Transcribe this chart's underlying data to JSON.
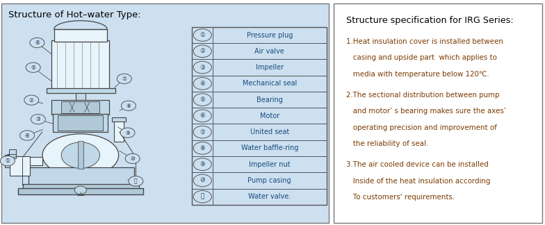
{
  "left_panel_bg": "#cce0f0",
  "right_panel_bg": "#ffffff",
  "border_color": "#555555",
  "title_left": "Structure of Hot–water Type:",
  "title_color": "#000000",
  "table_text_color": "#1a4a7a",
  "spec_text_color": "#7a3a00",
  "table_items": [
    [
      "①",
      "Pressure plug"
    ],
    [
      "②",
      "Air valve"
    ],
    [
      "③",
      "Impeller"
    ],
    [
      "④",
      "Mechanical seal"
    ],
    [
      "⑤",
      "Bearing"
    ],
    [
      "⑥",
      "Motor"
    ],
    [
      "⑦",
      "United seat"
    ],
    [
      "⑧",
      "Water baffle-ring"
    ],
    [
      "⑨",
      "Impeller nut"
    ],
    [
      "⑩",
      "Pump casing"
    ],
    [
      "⑪",
      "Water valve."
    ]
  ],
  "spec_title": "Structure specification for IRG Series:",
  "spec_lines": [
    "1.Heat insulation cover is installed between",
    "  casing and upside part  which applies to",
    "  media with temperature below 120℃.",
    "2.The sectional distribution between pump",
    "  and motor’ s bearing makes sure the axes’",
    "  operating precision and improvement of",
    "  the reliability of seal.",
    "3.The air cooled device can be installed",
    "  Inside of the heat insulation according",
    "  To customers' requirements."
  ],
  "figsize": [
    7.84,
    3.24
  ],
  "dpi": 100
}
